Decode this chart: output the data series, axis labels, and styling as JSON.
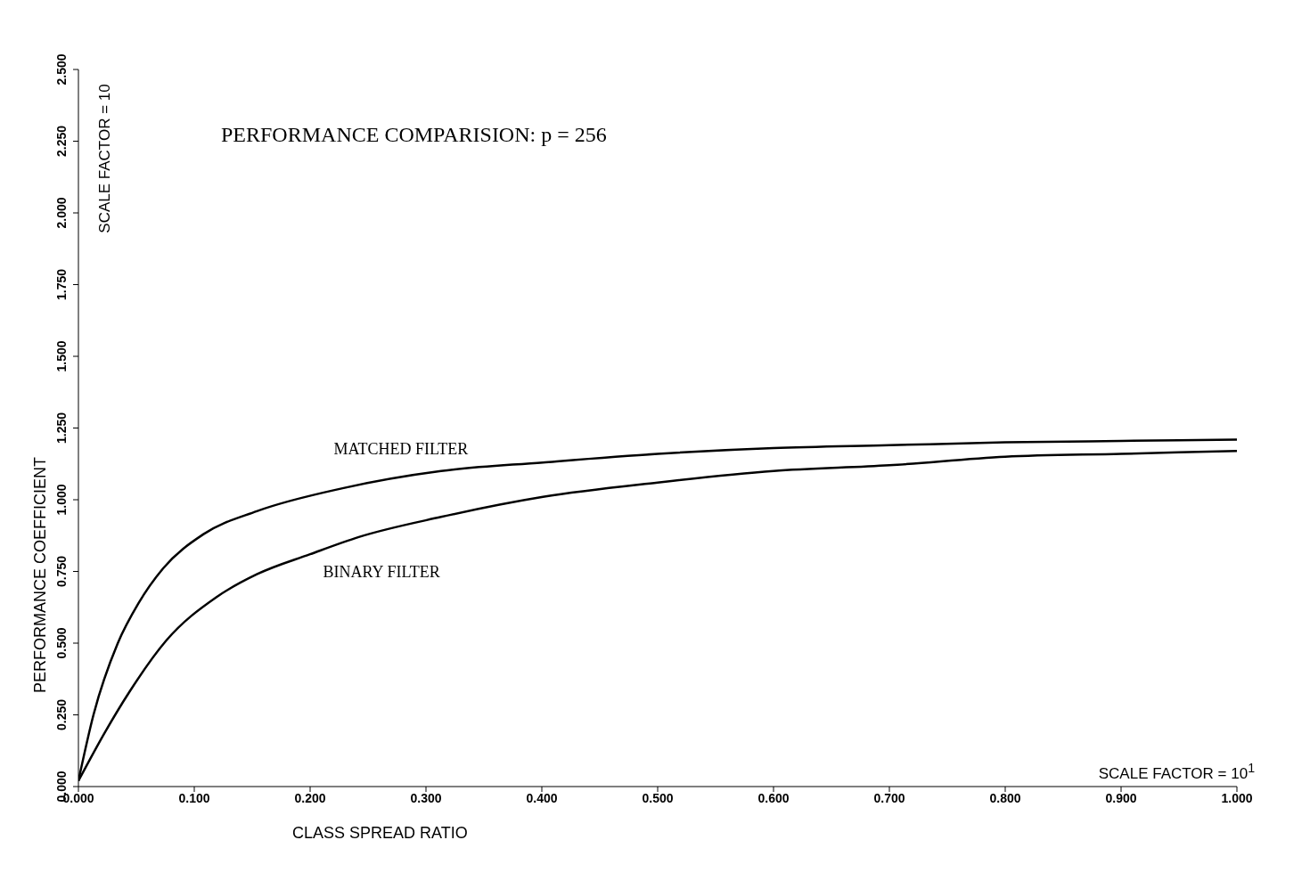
{
  "chart_data": {
    "type": "line",
    "title": "PERFORMANCE COMPARISION: p = 256",
    "xlabel": "CLASS SPREAD RATIO",
    "ylabel": "PERFORMANCE COEFFICIENT",
    "annotations": [
      "SCALE FACTOR = 10",
      "SCALE FACTOR = 10$^{1}$"
    ],
    "series": [
      {
        "name": "MATCHED FILTER",
        "color": "#000000",
        "x": [
          0,
          0.013,
          0.034,
          0.052,
          0.073,
          0.108,
          0.154,
          0.228,
          0.313,
          0.401,
          0.5,
          0.6,
          0.7,
          0.8,
          0.9,
          1.0
        ],
        "values": [
          0.02,
          0.25,
          0.5,
          0.64,
          0.76,
          0.88,
          0.96,
          1.04,
          1.1,
          1.13,
          1.16,
          1.18,
          1.19,
          1.2,
          1.205,
          1.21
        ]
      },
      {
        "name": "BINARY FILTER",
        "color": "#000000",
        "x": [
          0,
          0.023,
          0.044,
          0.076,
          0.119,
          0.154,
          0.2,
          0.242,
          0.313,
          0.401,
          0.5,
          0.6,
          0.7,
          0.8,
          0.9,
          1.0
        ],
        "values": [
          0.02,
          0.19,
          0.33,
          0.51,
          0.66,
          0.74,
          0.81,
          0.87,
          0.94,
          1.01,
          1.06,
          1.1,
          1.12,
          1.15,
          1.16,
          1.17
        ]
      }
    ],
    "xlim": [
      0,
      1
    ],
    "xticks": [
      {
        "value": 0,
        "label": "0.000"
      },
      {
        "value": 0.1,
        "label": "0.100"
      },
      {
        "value": 0.2,
        "label": "0.200"
      },
      {
        "value": 0.3,
        "label": "0.300"
      },
      {
        "value": 0.4,
        "label": "0.400"
      },
      {
        "value": 0.5,
        "label": "0.500"
      },
      {
        "value": 0.6,
        "label": "0.600"
      },
      {
        "value": 0.7,
        "label": "0.700"
      },
      {
        "value": 0.8,
        "label": "0.800"
      },
      {
        "value": 0.9,
        "label": "0.900"
      },
      {
        "value": 1,
        "label": "1.000"
      }
    ],
    "ylim": [
      0,
      2.5
    ],
    "yticks": [
      {
        "value": 0,
        "label": "0.000"
      },
      {
        "value": 0.25,
        "label": "0.250"
      },
      {
        "value": 0.5,
        "label": "0.500"
      },
      {
        "value": 0.75,
        "label": "0.750"
      },
      {
        "value": 1,
        "label": "1.000"
      },
      {
        "value": 1.25,
        "label": "1.250"
      },
      {
        "value": 1.5,
        "label": "1.500"
      },
      {
        "value": 1.75,
        "label": "1.750"
      },
      {
        "value": 2,
        "label": "2.000"
      },
      {
        "value": 2.25,
        "label": "2.250"
      },
      {
        "value": 2.5,
        "label": "2.500"
      }
    ],
    "grid": false,
    "legend": false,
    "marker": "none",
    "line_style": "solid"
  }
}
